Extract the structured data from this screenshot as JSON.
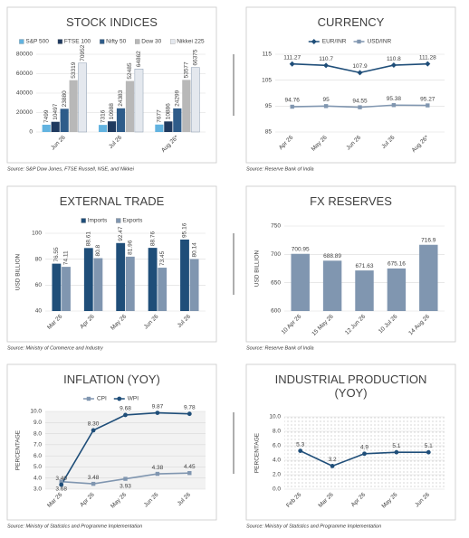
{
  "chart_data": [
    {
      "type": "bar",
      "title": "STOCK INDICES",
      "source": "Source: S&P Dow Jones, FTSE Russell, NSE, and Nikkei",
      "categories": [
        "Jun 26",
        "Jul 26",
        "Aug 26*"
      ],
      "series": [
        {
          "name": "S&P 500",
          "color": "#62b3e0",
          "values": [
            7499,
            7316,
            7677
          ]
        },
        {
          "name": "FTSE 100",
          "color": "#1f3a5f",
          "values": [
            10497,
            10988,
            10886
          ]
        },
        {
          "name": "Nifty 50",
          "color": "#2e5c8a",
          "values": [
            23880,
            24383,
            24299
          ]
        },
        {
          "name": "Dow 30",
          "color": "#b8b8b8",
          "values": [
            53319,
            52485,
            53577
          ]
        },
        {
          "name": "Nikkei 225",
          "color": "#e4e8ee",
          "values": [
            70952,
            64862,
            66375
          ]
        }
      ],
      "ylim": [
        0,
        80000
      ],
      "yticks": [
        0,
        20000,
        40000,
        60000,
        80000
      ],
      "grid": true
    },
    {
      "type": "line",
      "title": "CURRENCY",
      "source": "Source: Reserve Bank of India",
      "categories": [
        "Apr 26",
        "May 26",
        "Jun 26",
        "Jul 26",
        "Aug 26*"
      ],
      "series": [
        {
          "name": "EUR/INR",
          "color": "#1f4e79",
          "marker": "diamond",
          "values": [
            111.27,
            110.7,
            107.9,
            110.8,
            111.28
          ]
        },
        {
          "name": "USD/INR",
          "color": "#8096b0",
          "marker": "square",
          "values": [
            94.76,
            95,
            94.55,
            95.38,
            95.27
          ]
        }
      ],
      "ylim": [
        85,
        115
      ],
      "yticks": [
        85,
        95,
        105,
        115
      ],
      "grid": true
    },
    {
      "type": "bar",
      "title": "EXTERNAL TRADE",
      "source": "Source: Ministry of Commerce and Industry",
      "ylabel": "USD BILLION",
      "categories": [
        "Mar 26",
        "Apr 26",
        "May 26",
        "Jun 26",
        "Jul 26"
      ],
      "series": [
        {
          "name": "Imports",
          "color": "#1f4e79",
          "values": [
            76.55,
            88.61,
            92.47,
            88.76,
            95.16
          ]
        },
        {
          "name": "Exports",
          "color": "#8096b0",
          "values": [
            74.11,
            80.8,
            81.96,
            73.45,
            80.14
          ]
        }
      ],
      "ylim": [
        40,
        100
      ],
      "yticks": [
        40,
        60,
        80,
        100
      ],
      "grid": true
    },
    {
      "type": "bar",
      "title": "FX RESERVES",
      "source": "Source: Reserve Bank of India",
      "ylabel": "USD BILLION",
      "categories": [
        "10 Apr 26",
        "15 May 26",
        "12 Jun 26",
        "10 Jul 26",
        "14 Aug 26"
      ],
      "values": [
        700.95,
        688.89,
        671.63,
        675.16,
        716.9
      ],
      "color": "#8096b0",
      "ylim": [
        600,
        750
      ],
      "yticks": [
        600,
        650,
        700,
        750
      ],
      "grid": true
    },
    {
      "type": "line",
      "title": "INFLATION (YOY)",
      "source": "Source: Ministry of Statistics and Programme Implementation",
      "ylabel": "PERCENTAGE",
      "categories": [
        "Mar 26",
        "Apr 26",
        "May 26",
        "Jun 26",
        "Jul 26"
      ],
      "series": [
        {
          "name": "CPI",
          "color": "#8096b0",
          "marker": "square",
          "values": [
            3.68,
            3.48,
            3.93,
            4.38,
            4.45
          ]
        },
        {
          "name": "WPI",
          "color": "#1f4e79",
          "marker": "circle",
          "values": [
            3.4,
            8.3,
            9.68,
            9.87,
            9.78
          ],
          "value_labels": [
            "3.40",
            "8.30",
            "9.68",
            "9.87",
            "9.78"
          ]
        }
      ],
      "ylim": [
        3,
        10
      ],
      "yticks": [
        {
          "value": 3,
          "label": "3.0"
        },
        {
          "value": 4,
          "label": "4.0"
        },
        {
          "value": 5,
          "label": "5.0"
        },
        {
          "value": 6,
          "label": "6.0"
        },
        {
          "value": 7,
          "label": "7.0"
        },
        {
          "value": 8,
          "label": "8.0"
        },
        {
          "value": 9,
          "label": "9.0"
        },
        {
          "value": 10,
          "label": "10.0"
        }
      ],
      "grid": true
    },
    {
      "type": "line",
      "title": "INDUSTRIAL PRODUCTION (YOY)",
      "source": "Source: Ministry of Statistics and Programme Implementation",
      "ylabel": "PERCENTAGE",
      "categories": [
        "Feb 26",
        "Mar 26",
        "Apr 26",
        "May 26",
        "Jun 26"
      ],
      "values": [
        5.3,
        3.2,
        4.9,
        5.1,
        5.1
      ],
      "color": "#1f4e79",
      "marker": "circle",
      "ylim": [
        0,
        10
      ],
      "yticks": [
        {
          "value": 0,
          "label": "0.0"
        },
        {
          "value": 2,
          "label": "2.0"
        },
        {
          "value": 4,
          "label": "4.0"
        },
        {
          "value": 6,
          "label": "6.0"
        },
        {
          "value": 8,
          "label": "8.0"
        },
        {
          "value": 10,
          "label": "10.0"
        }
      ],
      "grid": true
    }
  ]
}
